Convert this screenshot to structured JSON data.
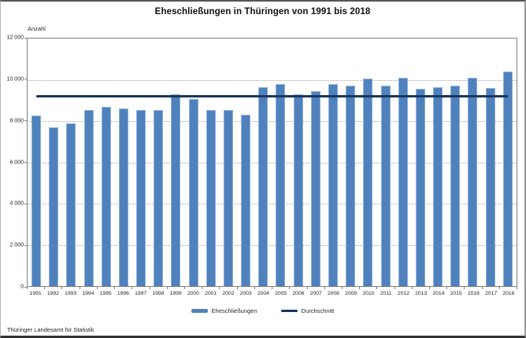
{
  "footer": "Thüringer Landesamt für Statistik",
  "colors": {
    "bar_fill": "#4f81bd",
    "bar_border": "#8cb0d9",
    "average_line": "#17375d",
    "gridline": "#a6a6a6",
    "axis": "#7f7f7f",
    "text": "#262626"
  },
  "chart_data": {
    "type": "bar",
    "title": "Eheschließungen in Thüringen von 1991 bis 2018",
    "xlabel": "",
    "ylabel": "Anzahl",
    "ylim": [
      0,
      12000
    ],
    "grid": "horizontal-dotted",
    "legend_position": "bottom",
    "y_ticks": [
      {
        "value": 0,
        "label": "0"
      },
      {
        "value": 2000,
        "label": "2 000"
      },
      {
        "value": 4000,
        "label": "4 000"
      },
      {
        "value": 6000,
        "label": "6 000"
      },
      {
        "value": 8000,
        "label": "8 000"
      },
      {
        "value": 10000,
        "label": "10 000"
      },
      {
        "value": 12000,
        "label": "12 000"
      }
    ],
    "categories": [
      "1991",
      "1992",
      "1993",
      "1994",
      "1995",
      "1996",
      "1997",
      "1998",
      "1999",
      "2000",
      "2001",
      "2002",
      "2003",
      "2004",
      "2005",
      "2006",
      "2007",
      "2008",
      "2009",
      "2010",
      "2011",
      "2012",
      "2013",
      "2014",
      "2015",
      "2016",
      "2017",
      "2018"
    ],
    "series": [
      {
        "name": "Eheschließungen",
        "type": "bar",
        "values": [
          8250,
          7700,
          7900,
          8550,
          8700,
          8600,
          8550,
          8550,
          9300,
          9050,
          8550,
          8550,
          8300,
          9650,
          9800,
          9300,
          9450,
          9800,
          9700,
          10050,
          9700,
          10100,
          9550,
          9650,
          9700,
          10100,
          9600,
          10400
        ]
      },
      {
        "name": "Durchschnitt",
        "type": "line",
        "value": 9200
      }
    ]
  }
}
